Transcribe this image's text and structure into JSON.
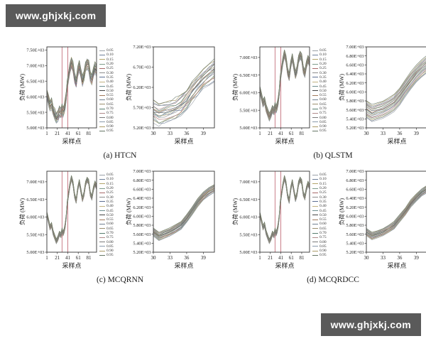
{
  "watermark": {
    "text": "www.ghjxkj.com",
    "bg": "#5a5a5a",
    "fg": "#ffffff"
  },
  "xlabel": "采样点",
  "ylabel": "负荷 (MW)",
  "guide_color": "#c4707c",
  "axis_color": "#333333",
  "palette": [
    "#9aa0a6",
    "#6e7f99",
    "#b3a56b",
    "#7d9b8a",
    "#a86a6a",
    "#8c8c8c",
    "#5c6e91",
    "#c2b280",
    "#6f8f8f",
    "#444444",
    "#a0785a",
    "#708090",
    "#9b8f6e",
    "#567d6e",
    "#b08a8a",
    "#7a7a7a",
    "#8899aa",
    "#aa9966",
    "#667766"
  ],
  "legend_quantiles": [
    "0.05",
    "0.10",
    "0.15",
    "0.20",
    "0.25",
    "0.30",
    "0.35",
    "0.40",
    "0.45",
    "0.50",
    "0.55",
    "0.60",
    "0.65",
    "0.70",
    "0.75",
    "0.80",
    "0.85",
    "0.90",
    "0.95"
  ],
  "subplots": [
    {
      "id": "a",
      "caption": "(a) HTCN"
    },
    {
      "id": "b",
      "caption": "(b) QLSTM"
    },
    {
      "id": "c",
      "caption": "(c) MCQRNN"
    },
    {
      "id": "d",
      "caption": "(d) MCQRDCC"
    }
  ],
  "chart_data": [
    {
      "id": "a-main",
      "type": "line",
      "kind": "main",
      "xlabel": "采样点",
      "ylabel": "负荷 (MW)",
      "xlim": [
        1,
        96
      ],
      "ylim": [
        5000,
        7600
      ],
      "xticks": [
        1,
        21,
        41,
        61,
        81
      ],
      "yticks": [
        5000,
        5500,
        6000,
        6500,
        7000,
        7500
      ],
      "highlight_x": [
        30,
        41
      ],
      "x": [
        1,
        4,
        7,
        10,
        13,
        16,
        19,
        22,
        25,
        28,
        30,
        32,
        34,
        36,
        38,
        40,
        42,
        45,
        48,
        51,
        54,
        57,
        60,
        63,
        66,
        69,
        72,
        75,
        78,
        81,
        84,
        87,
        90,
        93,
        96
      ],
      "median": [
        6080,
        5900,
        5700,
        5780,
        5560,
        5430,
        5310,
        5390,
        5530,
        5480,
        5620,
        5530,
        5610,
        5760,
        6010,
        6380,
        6600,
        6900,
        7110,
        6950,
        6600,
        6450,
        6800,
        7000,
        6750,
        6500,
        6650,
        6950,
        7060,
        7000,
        6650,
        6550,
        6800,
        6950,
        6850
      ],
      "spread": 160,
      "noise": 45,
      "seed": 3
    },
    {
      "id": "a-zoom",
      "type": "line",
      "kind": "zoom",
      "xlabel": "采样点",
      "ylabel": "负荷 (MW)",
      "xlim": [
        30,
        41
      ],
      "ylim": [
        5200,
        7200
      ],
      "xticks": [
        30,
        33,
        36,
        39
      ],
      "yticks": [
        5200,
        5700,
        6200,
        6700,
        7200
      ],
      "x": [
        30,
        31,
        32,
        33,
        34,
        35,
        36,
        37,
        38,
        39,
        40,
        41
      ],
      "median": [
        5620,
        5530,
        5570,
        5610,
        5680,
        5760,
        5900,
        6080,
        6250,
        6400,
        6520,
        6620
      ],
      "spread": 250,
      "noise": 50,
      "seed": 7
    },
    {
      "id": "b-main",
      "type": "line",
      "kind": "main",
      "xlabel": "采样点",
      "ylabel": "负荷 (MW)",
      "xlim": [
        1,
        96
      ],
      "ylim": [
        5000,
        7300
      ],
      "xticks": [
        1,
        21,
        41,
        61,
        81
      ],
      "yticks": [
        5000,
        5500,
        6000,
        6500,
        7000
      ],
      "highlight_x": [
        30,
        41
      ],
      "x": [
        1,
        4,
        7,
        10,
        13,
        16,
        19,
        22,
        25,
        28,
        30,
        32,
        34,
        36,
        38,
        40,
        42,
        45,
        48,
        51,
        54,
        57,
        60,
        63,
        66,
        69,
        72,
        75,
        78,
        81,
        84,
        87,
        90,
        93,
        96
      ],
      "median": [
        6080,
        5900,
        5700,
        5780,
        5560,
        5430,
        5310,
        5390,
        5530,
        5480,
        5620,
        5530,
        5610,
        5760,
        6010,
        6380,
        6600,
        6900,
        7110,
        6950,
        6600,
        6450,
        6800,
        7000,
        6750,
        6500,
        6650,
        6950,
        7060,
        7000,
        6650,
        6550,
        6800,
        6950,
        6850
      ],
      "spread": 110,
      "noise": 9,
      "seed": 11
    },
    {
      "id": "b-zoom",
      "type": "line",
      "kind": "zoom",
      "xlabel": "采样点",
      "ylabel": "负荷 (MW)",
      "xlim": [
        30,
        41
      ],
      "ylim": [
        5200,
        7000
      ],
      "xticks": [
        30,
        33,
        36,
        39
      ],
      "yticks": [
        5200,
        5400,
        5600,
        5800,
        6000,
        6200,
        6400,
        6600,
        6800,
        7000
      ],
      "x": [
        30,
        31,
        32,
        33,
        34,
        35,
        36,
        37,
        38,
        39,
        40,
        41
      ],
      "median": [
        5620,
        5530,
        5570,
        5610,
        5680,
        5760,
        5900,
        6080,
        6250,
        6400,
        6520,
        6620
      ],
      "spread": 190,
      "noise": 10,
      "seed": 13
    },
    {
      "id": "c-main",
      "type": "line",
      "kind": "main",
      "xlabel": "采样点",
      "ylabel": "负荷 (MW)",
      "xlim": [
        1,
        96
      ],
      "ylim": [
        5000,
        7300
      ],
      "xticks": [
        1,
        21,
        41,
        61,
        81
      ],
      "yticks": [
        5000,
        5500,
        6000,
        6500,
        7000
      ],
      "highlight_x": [
        30,
        41
      ],
      "x": [
        1,
        4,
        7,
        10,
        13,
        16,
        19,
        22,
        25,
        28,
        30,
        32,
        34,
        36,
        38,
        40,
        42,
        45,
        48,
        51,
        54,
        57,
        60,
        63,
        66,
        69,
        72,
        75,
        78,
        81,
        84,
        87,
        90,
        93,
        96
      ],
      "median": [
        6080,
        5900,
        5700,
        5780,
        5560,
        5430,
        5310,
        5390,
        5530,
        5480,
        5620,
        5530,
        5610,
        5760,
        6010,
        6380,
        6600,
        6900,
        7110,
        6950,
        6600,
        6450,
        6800,
        7000,
        6750,
        6500,
        6650,
        6950,
        7060,
        7000,
        6650,
        6550,
        6800,
        6950,
        6850
      ],
      "spread": 70,
      "noise": 6,
      "seed": 17
    },
    {
      "id": "c-zoom",
      "type": "line",
      "kind": "zoom",
      "xlabel": "采样点",
      "ylabel": "负荷 (MW)",
      "xlim": [
        30,
        41
      ],
      "ylim": [
        5200,
        7000
      ],
      "xticks": [
        30,
        33,
        36,
        39
      ],
      "yticks": [
        5200,
        5400,
        5600,
        5800,
        6000,
        6200,
        6400,
        6600,
        6800,
        7000
      ],
      "x": [
        30,
        31,
        32,
        33,
        34,
        35,
        36,
        37,
        38,
        39,
        40,
        41
      ],
      "median": [
        5650,
        5550,
        5600,
        5650,
        5720,
        5800,
        5950,
        6120,
        6300,
        6450,
        6550,
        6620
      ],
      "spread": 90,
      "noise": 8,
      "seed": 19
    },
    {
      "id": "d-main",
      "type": "line",
      "kind": "main",
      "xlabel": "采样点",
      "ylabel": "负荷 (MW)",
      "xlim": [
        1,
        96
      ],
      "ylim": [
        5000,
        7300
      ],
      "xticks": [
        1,
        21,
        41,
        61,
        81
      ],
      "yticks": [
        5000,
        5500,
        6000,
        6500,
        7000
      ],
      "highlight_x": [
        30,
        41
      ],
      "x": [
        1,
        4,
        7,
        10,
        13,
        16,
        19,
        22,
        25,
        28,
        30,
        32,
        34,
        36,
        38,
        40,
        42,
        45,
        48,
        51,
        54,
        57,
        60,
        63,
        66,
        69,
        72,
        75,
        78,
        81,
        84,
        87,
        90,
        93,
        96
      ],
      "median": [
        6080,
        5900,
        5700,
        5780,
        5560,
        5430,
        5310,
        5390,
        5530,
        5480,
        5620,
        5530,
        5610,
        5760,
        6010,
        6380,
        6600,
        6900,
        7110,
        6950,
        6600,
        6450,
        6800,
        7000,
        6750,
        6500,
        6650,
        6950,
        7060,
        7000,
        6650,
        6550,
        6800,
        6950,
        6850
      ],
      "spread": 70,
      "noise": 6,
      "seed": 23
    },
    {
      "id": "d-zoom",
      "type": "line",
      "kind": "zoom",
      "xlabel": "采样点",
      "ylabel": "负荷 (MW)",
      "xlim": [
        30,
        41
      ],
      "ylim": [
        5200,
        7000
      ],
      "xticks": [
        30,
        33,
        36,
        39
      ],
      "yticks": [
        5200,
        5400,
        5600,
        5800,
        6000,
        6200,
        6400,
        6600,
        6800,
        7000
      ],
      "x": [
        30,
        31,
        32,
        33,
        34,
        35,
        36,
        37,
        38,
        39,
        40,
        41
      ],
      "median": [
        5650,
        5560,
        5600,
        5650,
        5720,
        5800,
        5950,
        6100,
        6280,
        6420,
        6530,
        6610
      ],
      "spread": 80,
      "noise": 8,
      "seed": 29
    }
  ]
}
